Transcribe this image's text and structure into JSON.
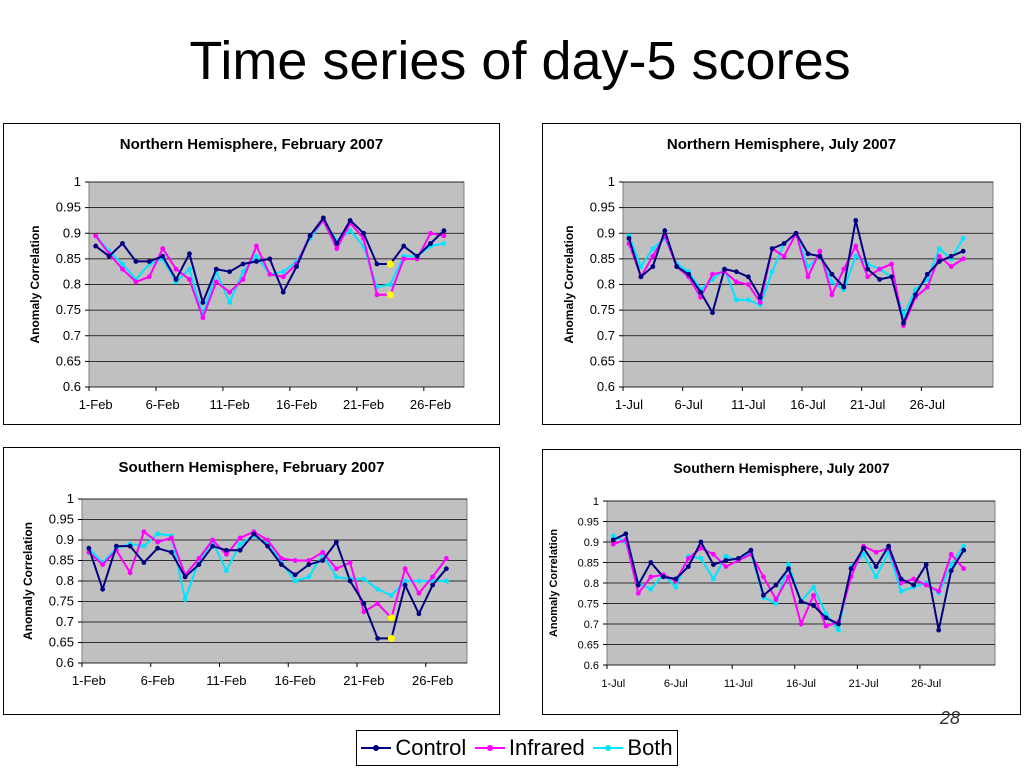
{
  "slide": {
    "title": "Time series of day-5 scores",
    "page_number": "28"
  },
  "legend": [
    {
      "name": "Control",
      "color": "#000080"
    },
    {
      "name": "Infrared",
      "color": "#ff00ff"
    },
    {
      "name": "Both",
      "color": "#00e5ff"
    }
  ],
  "chart_data": [
    {
      "type": "line",
      "title": "Northern Hemisphere, February 2007",
      "ylabel": "Anomaly Correlation",
      "ylim": [
        0.6,
        1
      ],
      "yticks": [
        "0.6",
        "0.65",
        "0.7",
        "0.75",
        "0.8",
        "0.85",
        "0.9",
        "0.95",
        "1"
      ],
      "x": [
        1,
        2,
        3,
        4,
        5,
        6,
        7,
        8,
        9,
        10,
        11,
        12,
        13,
        14,
        15,
        16,
        17,
        18,
        19,
        20,
        21,
        22,
        23,
        24,
        25,
        26,
        27,
        28
      ],
      "xtick_labels": [
        "1-Feb",
        "6-Feb",
        "11-Feb",
        "16-Feb",
        "21-Feb",
        "26-Feb"
      ],
      "xtick_days": [
        1,
        6,
        11,
        16,
        21,
        26
      ],
      "series": [
        {
          "name": "Control",
          "color": "#000080",
          "values": [
            0.875,
            0.855,
            0.88,
            0.845,
            0.845,
            0.855,
            0.81,
            0.86,
            0.765,
            0.83,
            0.825,
            0.84,
            0.845,
            0.85,
            0.785,
            0.835,
            0.895,
            0.93,
            0.88,
            0.925,
            0.9,
            0.84,
            0.84,
            0.875,
            0.855,
            0.88,
            0.905,
            null
          ]
        },
        {
          "name": "Infrared",
          "color": "#ff00ff",
          "values": [
            0.895,
            0.86,
            0.83,
            0.805,
            0.815,
            0.87,
            0.83,
            0.81,
            0.735,
            0.805,
            0.785,
            0.81,
            0.875,
            0.82,
            0.815,
            0.84,
            0.895,
            0.925,
            0.87,
            0.92,
            0.89,
            0.78,
            0.78,
            0.85,
            0.85,
            0.9,
            0.895,
            null
          ]
        },
        {
          "name": "Both",
          "color": "#00e5ff",
          "values": [
            0.895,
            0.865,
            0.84,
            0.81,
            0.84,
            0.85,
            0.805,
            0.83,
            0.74,
            0.825,
            0.765,
            0.825,
            0.855,
            0.82,
            0.825,
            0.845,
            0.89,
            0.925,
            0.885,
            0.905,
            0.875,
            0.795,
            0.8,
            0.855,
            0.855,
            0.875,
            0.88,
            null
          ]
        }
      ],
      "highlights": [
        {
          "x": 23,
          "y": 0.84
        },
        {
          "x": 23,
          "y": 0.78
        }
      ]
    },
    {
      "type": "line",
      "title": "Northern Hemisphere, July 2007",
      "ylabel": "Anomaly Correlation",
      "ylim": [
        0.6,
        1
      ],
      "yticks": [
        "0.6",
        "0.65",
        "0.7",
        "0.75",
        "0.8",
        "0.85",
        "0.9",
        "0.95",
        "1"
      ],
      "x": [
        1,
        2,
        3,
        4,
        5,
        6,
        7,
        8,
        9,
        10,
        11,
        12,
        13,
        14,
        15,
        16,
        17,
        18,
        19,
        20,
        21,
        22,
        23,
        24,
        25,
        26,
        27,
        28,
        29,
        30,
        31
      ],
      "xtick_labels": [
        "1-Jul",
        "6-Jul",
        "11-Jul",
        "16-Jul",
        "21-Jul",
        "26-Jul"
      ],
      "xtick_days": [
        1,
        6,
        11,
        16,
        21,
        26
      ],
      "series": [
        {
          "name": "Control",
          "color": "#000080",
          "values": [
            0.89,
            0.815,
            0.835,
            0.905,
            0.835,
            0.82,
            0.785,
            0.745,
            0.83,
            0.825,
            0.815,
            0.775,
            0.87,
            0.88,
            0.9,
            0.86,
            0.855,
            0.82,
            0.795,
            0.925,
            0.83,
            0.81,
            0.815,
            0.725,
            0.78,
            0.82,
            0.845,
            0.855,
            0.865,
            null,
            null
          ]
        },
        {
          "name": "Infrared",
          "color": "#ff00ff",
          "values": [
            0.88,
            0.815,
            0.855,
            0.895,
            0.835,
            0.815,
            0.775,
            0.82,
            0.825,
            0.805,
            0.8,
            0.765,
            0.87,
            0.855,
            0.9,
            0.815,
            0.865,
            0.78,
            0.83,
            0.875,
            0.815,
            0.83,
            0.84,
            0.72,
            0.775,
            0.795,
            0.855,
            0.835,
            0.85,
            null,
            null
          ]
        },
        {
          "name": "Both",
          "color": "#00e5ff",
          "values": [
            0.895,
            0.835,
            0.87,
            0.89,
            0.84,
            0.825,
            0.79,
            0.81,
            0.83,
            0.77,
            0.77,
            0.76,
            0.825,
            0.88,
            0.9,
            0.835,
            0.855,
            0.805,
            0.79,
            0.855,
            0.84,
            0.83,
            0.815,
            0.74,
            0.79,
            0.81,
            0.87,
            0.85,
            0.89,
            null,
            null
          ]
        }
      ]
    },
    {
      "type": "line",
      "title": "Southern Hemisphere, February 2007",
      "ylabel": "Anomaly Correlation",
      "ylim": [
        0.6,
        1
      ],
      "yticks": [
        "0.6",
        "0.65",
        "0.7",
        "0.75",
        "0.8",
        "0.85",
        "0.9",
        "0.95",
        "1"
      ],
      "x": [
        1,
        2,
        3,
        4,
        5,
        6,
        7,
        8,
        9,
        10,
        11,
        12,
        13,
        14,
        15,
        16,
        17,
        18,
        19,
        20,
        21,
        22,
        23,
        24,
        25,
        26,
        27,
        28
      ],
      "xtick_labels": [
        "1-Feb",
        "6-Feb",
        "11-Feb",
        "16-Feb",
        "21-Feb",
        "26-Feb"
      ],
      "xtick_days": [
        1,
        6,
        11,
        16,
        21,
        26
      ],
      "series": [
        {
          "name": "Control",
          "color": "#000080",
          "values": [
            0.88,
            0.78,
            0.885,
            0.885,
            0.845,
            0.88,
            0.87,
            0.81,
            0.84,
            0.885,
            0.875,
            0.875,
            0.915,
            0.885,
            0.84,
            0.815,
            0.84,
            0.85,
            0.895,
            0.8,
            0.745,
            0.66,
            0.66,
            0.79,
            0.72,
            0.79,
            0.83,
            null
          ]
        },
        {
          "name": "Infrared",
          "color": "#ff00ff",
          "values": [
            0.87,
            0.84,
            0.875,
            0.82,
            0.92,
            0.895,
            0.905,
            0.815,
            0.855,
            0.9,
            0.865,
            0.905,
            0.92,
            0.9,
            0.855,
            0.85,
            0.85,
            0.87,
            0.83,
            0.845,
            0.725,
            0.745,
            0.71,
            0.83,
            0.77,
            0.81,
            0.855,
            null
          ]
        },
        {
          "name": "Both",
          "color": "#00e5ff",
          "values": [
            0.88,
            0.845,
            0.88,
            0.89,
            0.885,
            0.915,
            0.91,
            0.755,
            0.85,
            0.895,
            0.825,
            0.89,
            0.91,
            0.89,
            0.845,
            0.8,
            0.81,
            0.865,
            0.81,
            0.805,
            0.805,
            0.78,
            0.765,
            0.8,
            0.8,
            0.8,
            0.8,
            null
          ]
        }
      ],
      "highlights": [
        {
          "x": 23,
          "y": 0.71
        },
        {
          "x": 23,
          "y": 0.66
        }
      ]
    },
    {
      "type": "line",
      "title": "Southern Hemisphere, July 2007",
      "ylabel": "Anomaly Correlation",
      "ylim": [
        0.6,
        1
      ],
      "yticks": [
        "0.6",
        "0.65",
        "0.7",
        "0.75",
        "0.8",
        "0.85",
        "0.9",
        "0.95",
        "1"
      ],
      "x": [
        1,
        2,
        3,
        4,
        5,
        6,
        7,
        8,
        9,
        10,
        11,
        12,
        13,
        14,
        15,
        16,
        17,
        18,
        19,
        20,
        21,
        22,
        23,
        24,
        25,
        26,
        27,
        28,
        29,
        30,
        31
      ],
      "xtick_labels": [
        "1-Jul",
        "6-Jul",
        "11-Jul",
        "16-Jul",
        "21-Jul",
        "26-Jul"
      ],
      "xtick_days": [
        1,
        6,
        11,
        16,
        21,
        26
      ],
      "series": [
        {
          "name": "Control",
          "color": "#000080",
          "values": [
            0.905,
            0.92,
            0.795,
            0.85,
            0.815,
            0.81,
            0.84,
            0.9,
            0.845,
            0.855,
            0.86,
            0.88,
            0.77,
            0.795,
            0.835,
            0.755,
            0.745,
            0.715,
            0.7,
            0.835,
            0.885,
            0.84,
            0.89,
            0.81,
            0.795,
            0.845,
            0.685,
            0.83,
            0.88,
            null,
            null
          ]
        },
        {
          "name": "Infrared",
          "color": "#ff00ff",
          "values": [
            0.895,
            0.905,
            0.775,
            0.815,
            0.82,
            0.805,
            0.86,
            0.885,
            0.87,
            0.84,
            0.855,
            0.87,
            0.815,
            0.76,
            0.815,
            0.7,
            0.77,
            0.695,
            0.705,
            0.815,
            0.89,
            0.875,
            0.885,
            0.8,
            0.81,
            0.795,
            0.78,
            0.87,
            0.835,
            null,
            null
          ]
        },
        {
          "name": "Both",
          "color": "#00e5ff",
          "values": [
            0.915,
            0.9,
            0.8,
            0.785,
            0.82,
            0.79,
            0.865,
            0.86,
            0.81,
            0.865,
            0.855,
            0.875,
            0.765,
            0.75,
            0.845,
            0.755,
            0.79,
            0.725,
            0.685,
            0.84,
            0.87,
            0.815,
            0.875,
            0.78,
            0.79,
            0.8,
            0.775,
            0.845,
            0.89,
            null,
            null
          ]
        }
      ]
    }
  ]
}
